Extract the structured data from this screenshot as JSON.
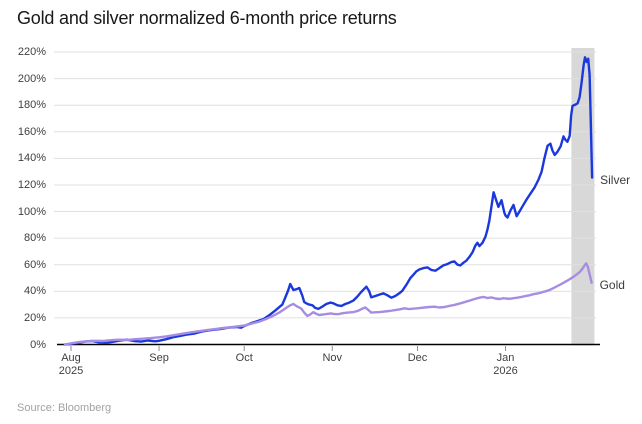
{
  "header": {
    "title": "Gold and silver normalized 6-month price returns"
  },
  "footer": {
    "source": "Source: Bloomberg"
  },
  "colors": {
    "silver_line": "#1b38dd",
    "gold_line": "#a78de2",
    "highlight_band": "#d8d8d8",
    "gridline": "#e0e0e0",
    "axis": "#000000",
    "tick_text": "#3f3f3f",
    "background": "#ffffff"
  },
  "chart_data": {
    "type": "line",
    "title": "Gold and silver normalized 6-month price returns",
    "grid": true,
    "legend_position": "end-of-line-labels",
    "x_axis": {
      "unit": "days since Aug 1 2025",
      "ticks": [
        {
          "day": 0,
          "label": "Aug",
          "sublabel": "2025"
        },
        {
          "day": 31,
          "label": "Sep"
        },
        {
          "day": 61,
          "label": "Oct"
        },
        {
          "day": 92,
          "label": "Nov"
        },
        {
          "day": 122,
          "label": "Dec"
        },
        {
          "day": 153,
          "label": "Jan",
          "sublabel": "2026"
        }
      ]
    },
    "y_axis": {
      "min": 0,
      "max": 220,
      "unit": "%",
      "ticks": [
        {
          "v": 0,
          "label": "0%"
        },
        {
          "v": 20,
          "label": "20%"
        },
        {
          "v": 40,
          "label": "40%"
        },
        {
          "v": 60,
          "label": "60%"
        },
        {
          "v": 80,
          "label": "80%"
        },
        {
          "v": 100,
          "label": "100%"
        },
        {
          "v": 120,
          "label": "120%"
        },
        {
          "v": 140,
          "label": "140%"
        },
        {
          "v": 160,
          "label": "160%"
        },
        {
          "v": 180,
          "label": "180%"
        },
        {
          "v": 200,
          "label": "200%"
        },
        {
          "v": 220,
          "label": "220%"
        }
      ]
    },
    "highlight_band": {
      "day_start": 176.2,
      "day_end": 184.3,
      "color": "#d8d8d8"
    },
    "series": [
      {
        "name": "Silver",
        "color": "#1b38dd",
        "points": [
          [
            -2.1,
            0
          ],
          [
            0,
            0.5
          ],
          [
            2.5,
            1.2
          ],
          [
            4.9,
            2.2
          ],
          [
            7.4,
            2.6
          ],
          [
            9.9,
            1.6
          ],
          [
            12.3,
            1.2
          ],
          [
            14.8,
            2
          ],
          [
            17.3,
            3
          ],
          [
            19.7,
            3.6
          ],
          [
            22.2,
            2.6
          ],
          [
            24.7,
            2.2
          ],
          [
            27.1,
            3
          ],
          [
            29.6,
            2.4
          ],
          [
            31,
            2.8
          ],
          [
            33.5,
            4
          ],
          [
            36,
            5.5
          ],
          [
            38.4,
            6.5
          ],
          [
            40.9,
            7.5
          ],
          [
            43.4,
            8.2
          ],
          [
            45.8,
            9.6
          ],
          [
            48.3,
            10.6
          ],
          [
            50.8,
            11.2
          ],
          [
            53.2,
            11.8
          ],
          [
            55.7,
            12.8
          ],
          [
            58.2,
            13.2
          ],
          [
            59.9,
            12.6
          ],
          [
            61.3,
            14.2
          ],
          [
            63.4,
            16
          ],
          [
            65.6,
            17.5
          ],
          [
            67.7,
            19
          ],
          [
            69.8,
            22
          ],
          [
            71.9,
            25.5
          ],
          [
            74.4,
            30
          ],
          [
            75.4,
            35
          ],
          [
            76.5,
            41
          ],
          [
            77.2,
            45.5
          ],
          [
            78.3,
            41
          ],
          [
            79.3,
            41.5
          ],
          [
            80.4,
            42.5
          ],
          [
            81.4,
            37
          ],
          [
            82.1,
            32
          ],
          [
            82.8,
            31
          ],
          [
            83.9,
            30
          ],
          [
            85,
            29.5
          ],
          [
            86,
            27.5
          ],
          [
            87.1,
            26.8
          ],
          [
            88.5,
            28.5
          ],
          [
            89.9,
            30.5
          ],
          [
            91.3,
            31.5
          ],
          [
            92.4,
            31
          ],
          [
            93.8,
            29.5
          ],
          [
            95.2,
            29
          ],
          [
            96.6,
            30.5
          ],
          [
            98,
            31.5
          ],
          [
            99.4,
            33
          ],
          [
            100.8,
            36
          ],
          [
            102.2,
            39.5
          ],
          [
            103.3,
            42
          ],
          [
            104,
            43.5
          ],
          [
            105,
            40
          ],
          [
            105.7,
            35.5
          ],
          [
            107.2,
            36.5
          ],
          [
            108.6,
            37.5
          ],
          [
            110,
            38.5
          ],
          [
            111.4,
            37
          ],
          [
            112.8,
            35.2
          ],
          [
            114.2,
            36.5
          ],
          [
            115.6,
            38.5
          ],
          [
            116.7,
            40.5
          ],
          [
            118.1,
            45
          ],
          [
            119.5,
            50
          ],
          [
            120.6,
            52.5
          ],
          [
            121.6,
            55
          ],
          [
            122.7,
            56.5
          ],
          [
            124.1,
            57.5
          ],
          [
            125.5,
            58
          ],
          [
            126.9,
            56
          ],
          [
            128.3,
            55.5
          ],
          [
            129.7,
            57.5
          ],
          [
            131.1,
            59.5
          ],
          [
            132.5,
            60.5
          ],
          [
            133.9,
            62
          ],
          [
            135,
            62.5
          ],
          [
            136.1,
            60
          ],
          [
            137.1,
            59.5
          ],
          [
            138.2,
            61.5
          ],
          [
            139.2,
            63
          ],
          [
            140.3,
            66
          ],
          [
            141.4,
            69.5
          ],
          [
            142.4,
            74.5
          ],
          [
            143.1,
            76.5
          ],
          [
            143.8,
            74
          ],
          [
            144.9,
            76.5
          ],
          [
            145.9,
            81
          ],
          [
            146.6,
            86
          ],
          [
            147.3,
            93
          ],
          [
            148,
            103
          ],
          [
            148.8,
            114.5
          ],
          [
            149.8,
            108
          ],
          [
            150.5,
            103.5
          ],
          [
            151.6,
            108.5
          ],
          [
            152.6,
            99
          ],
          [
            153,
            97
          ],
          [
            153.7,
            95.5
          ],
          [
            154.8,
            101
          ],
          [
            155.8,
            105
          ],
          [
            156.9,
            96.5
          ],
          [
            157.9,
            100
          ],
          [
            159,
            104
          ],
          [
            160.4,
            109
          ],
          [
            161.8,
            113.5
          ],
          [
            163.2,
            118
          ],
          [
            164.6,
            124
          ],
          [
            165.7,
            130
          ],
          [
            166.7,
            140
          ],
          [
            167.8,
            149.5
          ],
          [
            168.8,
            151
          ],
          [
            169.5,
            146
          ],
          [
            170.3,
            142.5
          ],
          [
            171.3,
            145
          ],
          [
            172.4,
            149
          ],
          [
            173.4,
            156.5
          ],
          [
            174.1,
            154
          ],
          [
            174.8,
            152.5
          ],
          [
            175.6,
            157
          ],
          [
            176.1,
            172
          ],
          [
            176.6,
            179.5
          ],
          [
            177.7,
            180.5
          ],
          [
            178.4,
            181.5
          ],
          [
            179.1,
            186
          ],
          [
            179.8,
            197
          ],
          [
            180.5,
            210
          ],
          [
            181,
            216
          ],
          [
            181.6,
            212.5
          ],
          [
            182.1,
            215
          ],
          [
            182.6,
            203
          ],
          [
            183,
            170
          ],
          [
            183.5,
            125.5
          ]
        ]
      },
      {
        "name": "Gold",
        "color": "#a78de2",
        "points": [
          [
            -2.1,
            0
          ],
          [
            0.4,
            1
          ],
          [
            2.8,
            1.8
          ],
          [
            5.6,
            2.4
          ],
          [
            8.5,
            2.8
          ],
          [
            11.3,
            2.6
          ],
          [
            14.1,
            3.2
          ],
          [
            16.9,
            3.6
          ],
          [
            19.7,
            3.4
          ],
          [
            22.6,
            4
          ],
          [
            25.4,
            4.4
          ],
          [
            28.2,
            4.8
          ],
          [
            31,
            5.4
          ],
          [
            33.8,
            6.2
          ],
          [
            36.7,
            7.2
          ],
          [
            39.5,
            8.2
          ],
          [
            42.3,
            9.2
          ],
          [
            45.1,
            10
          ],
          [
            47.9,
            10.8
          ],
          [
            50.8,
            11.6
          ],
          [
            53.6,
            12.4
          ],
          [
            56.4,
            13
          ],
          [
            59.2,
            13.8
          ],
          [
            61.3,
            14.4
          ],
          [
            63.8,
            15.8
          ],
          [
            66.3,
            17.2
          ],
          [
            68.7,
            19.2
          ],
          [
            71.2,
            21.6
          ],
          [
            73.3,
            24
          ],
          [
            75.4,
            27
          ],
          [
            77.2,
            29.5
          ],
          [
            78.3,
            30.5
          ],
          [
            79.7,
            28.5
          ],
          [
            81.1,
            27
          ],
          [
            82.1,
            24
          ],
          [
            83.2,
            21.5
          ],
          [
            84.2,
            22.5
          ],
          [
            85.3,
            24.3
          ],
          [
            86.4,
            23
          ],
          [
            87.4,
            22.2
          ],
          [
            88.8,
            22.6
          ],
          [
            90.2,
            23
          ],
          [
            91.6,
            23.4
          ],
          [
            92.4,
            23
          ],
          [
            94.1,
            22.8
          ],
          [
            95.9,
            23.6
          ],
          [
            97.6,
            24
          ],
          [
            99.4,
            24.4
          ],
          [
            101.2,
            25.4
          ],
          [
            102.6,
            27
          ],
          [
            103.6,
            27.8
          ],
          [
            104.7,
            26
          ],
          [
            105.7,
            24
          ],
          [
            107.2,
            24.2
          ],
          [
            108.6,
            24.4
          ],
          [
            110.3,
            24.8
          ],
          [
            112.1,
            25.2
          ],
          [
            113.9,
            25.8
          ],
          [
            115.6,
            26.4
          ],
          [
            117.4,
            27.2
          ],
          [
            119.1,
            26.6
          ],
          [
            120.9,
            27
          ],
          [
            122.7,
            27.4
          ],
          [
            124.4,
            27.8
          ],
          [
            126.2,
            28.2
          ],
          [
            128,
            28.4
          ],
          [
            129.7,
            27.8
          ],
          [
            131.5,
            28.2
          ],
          [
            133.2,
            29
          ],
          [
            135,
            29.8
          ],
          [
            136.8,
            30.8
          ],
          [
            138.5,
            31.8
          ],
          [
            140.3,
            33
          ],
          [
            142.1,
            34.2
          ],
          [
            143.8,
            35.2
          ],
          [
            145.2,
            35.8
          ],
          [
            146.6,
            35
          ],
          [
            148,
            35.4
          ],
          [
            149.4,
            34.6
          ],
          [
            150.9,
            34.2
          ],
          [
            152.3,
            34.8
          ],
          [
            153,
            34.6
          ],
          [
            154.4,
            34.4
          ],
          [
            155.8,
            34.8
          ],
          [
            157.2,
            35.2
          ],
          [
            158.6,
            35.8
          ],
          [
            160,
            36.4
          ],
          [
            161.4,
            37
          ],
          [
            162.8,
            37.8
          ],
          [
            164.3,
            38.4
          ],
          [
            165.7,
            39.2
          ],
          [
            167.1,
            40
          ],
          [
            168.5,
            41
          ],
          [
            169.9,
            42.4
          ],
          [
            171.3,
            44
          ],
          [
            172.7,
            45.6
          ],
          [
            174.1,
            47.2
          ],
          [
            175.5,
            49
          ],
          [
            177,
            51
          ],
          [
            178,
            52.6
          ],
          [
            179.1,
            54.4
          ],
          [
            180.1,
            57
          ],
          [
            180.8,
            59.5
          ],
          [
            181.4,
            61
          ],
          [
            181.9,
            59
          ],
          [
            182.6,
            53
          ],
          [
            183.3,
            46.5
          ]
        ]
      }
    ]
  }
}
